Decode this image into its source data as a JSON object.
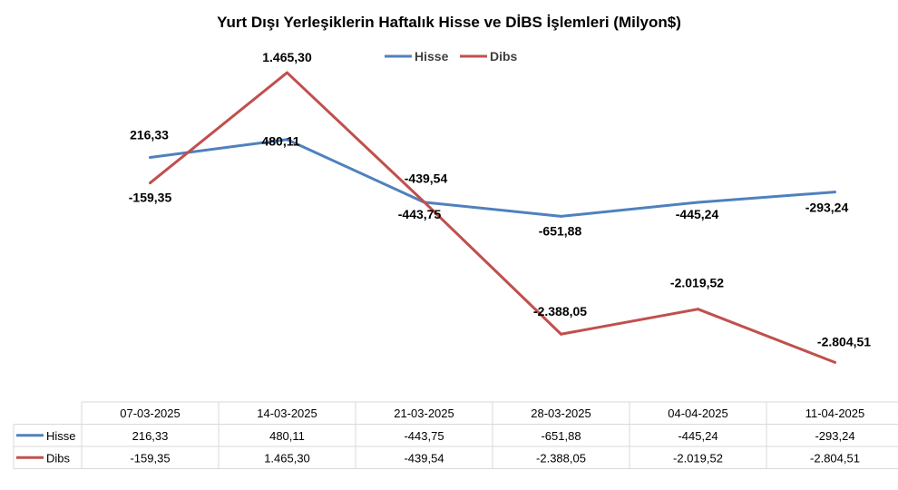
{
  "chart_data": {
    "type": "line",
    "title": "Yurt Dışı Yerleşiklerin Haftalık Hisse ve DİBS İşlemleri (Milyon$)",
    "categories": [
      "07-03-2025",
      "14-03-2025",
      "21-03-2025",
      "28-03-2025",
      "04-04-2025",
      "11-04-2025"
    ],
    "series": [
      {
        "name": "Hisse",
        "color": "#4f81bd",
        "values": [
          216.33,
          480.11,
          -443.75,
          -651.88,
          -445.24,
          -293.24
        ],
        "labels": [
          "216,33",
          "480,11",
          "-443,75",
          "-651,88",
          "-445,24",
          "-293,24"
        ]
      },
      {
        "name": "Dibs",
        "color": "#c0504d",
        "values": [
          -159.35,
          1465.3,
          -439.54,
          -2388.05,
          -2019.52,
          -2804.51
        ],
        "labels": [
          "-159,35",
          "1.465,30",
          "-439,54",
          "-2.388,05",
          "-2.019,52",
          "-2.804,51"
        ]
      }
    ],
    "legend_position": "top",
    "data_table": true,
    "grid": false
  }
}
